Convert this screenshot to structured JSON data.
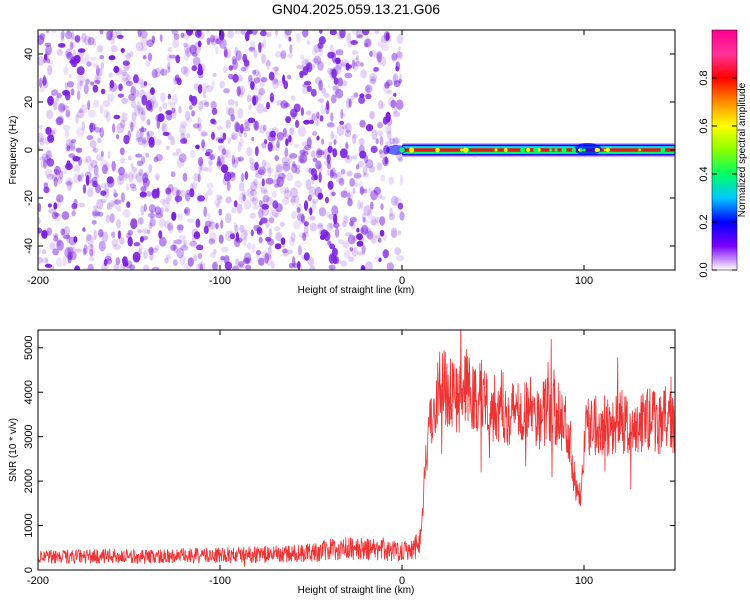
{
  "title": "GN04.2025.059.13.21.G06",
  "charts": [
    {
      "type": "heatmap",
      "xlabel": "Height of straight line (km)",
      "ylabel": "Frequency (Hz)",
      "xlim": [
        -200,
        150
      ],
      "ylim": [
        -50,
        50
      ],
      "xticks": [
        {
          "v": -200,
          "t": "-200"
        },
        {
          "v": -100,
          "t": "-100"
        },
        {
          "v": 0,
          "t": "0"
        },
        {
          "v": 100,
          "t": "100"
        }
      ],
      "yticks": [
        {
          "v": -40,
          "t": "-40"
        },
        {
          "v": -20,
          "t": "-20"
        },
        {
          "v": 0,
          "t": "0"
        },
        {
          "v": 20,
          "t": "20"
        },
        {
          "v": 40,
          "t": "40"
        }
      ],
      "noise_region": {
        "x_from": -200,
        "x_to": 0,
        "color": "#7b1fe0"
      },
      "signal_band": {
        "x_from": 0,
        "x_to": 150,
        "frequency_hz": 0,
        "color": "#e01818"
      },
      "colorbar": {
        "label": "Normalized spectral amplitude",
        "range": [
          0.0,
          1.0
        ],
        "ticks": [
          {
            "v": 0.0,
            "t": "0.0"
          },
          {
            "v": 0.2,
            "t": "0.2"
          },
          {
            "v": 0.4,
            "t": "0.4"
          },
          {
            "v": 0.6,
            "t": "0.6"
          },
          {
            "v": 0.8,
            "t": "0.8"
          }
        ],
        "stops": [
          "#ffffff",
          "#7b00ff",
          "#0000ff",
          "#00c8ff",
          "#00ff66",
          "#8cff00",
          "#ffff00",
          "#ff8c00",
          "#ff0000",
          "#ff3399",
          "#ff0090"
        ]
      }
    },
    {
      "type": "line",
      "xlabel": "Height of straight line (km)",
      "ylabel": "SNR (10 * v/v)",
      "xlim": [
        -200,
        150
      ],
      "ylim": [
        0,
        5400
      ],
      "xticks": [
        {
          "v": -200,
          "t": "-200"
        },
        {
          "v": -100,
          "t": "-100"
        },
        {
          "v": 0,
          "t": "0"
        },
        {
          "v": 100,
          "t": "100"
        }
      ],
      "yticks": [
        {
          "v": 0,
          "t": "0"
        },
        {
          "v": 1000,
          "t": "1000"
        },
        {
          "v": 2000,
          "t": "2000"
        },
        {
          "v": 3000,
          "t": "3000"
        },
        {
          "v": 4000,
          "t": "4000"
        },
        {
          "v": 5000,
          "t": "5000"
        }
      ],
      "color": "#ee3333",
      "series": [
        {
          "x": [
            -200,
            -180,
            -160,
            -140,
            -120,
            -100,
            -80,
            -60,
            -45,
            -35,
            -25,
            -15,
            -5,
            5,
            8,
            10,
            11,
            12,
            13,
            15,
            18,
            20,
            22,
            25,
            30,
            35,
            40,
            45,
            50,
            55,
            60,
            65,
            70,
            75,
            80,
            85,
            90,
            92,
            95,
            98,
            100,
            105,
            110,
            115,
            120,
            125,
            130,
            135,
            140,
            145,
            150
          ],
          "y": [
            280,
            300,
            310,
            300,
            320,
            330,
            350,
            360,
            420,
            500,
            470,
            460,
            430,
            480,
            560,
            700,
            1200,
            1800,
            2600,
            3100,
            3800,
            4100,
            4200,
            4100,
            3900,
            4100,
            3800,
            4000,
            3600,
            3700,
            3500,
            3700,
            3600,
            3400,
            3650,
            3500,
            3300,
            3000,
            2000,
            1700,
            3000,
            3500,
            3200,
            3300,
            3400,
            3100,
            3200,
            3450,
            3300,
            3400,
            3200
          ]
        }
      ]
    }
  ]
}
